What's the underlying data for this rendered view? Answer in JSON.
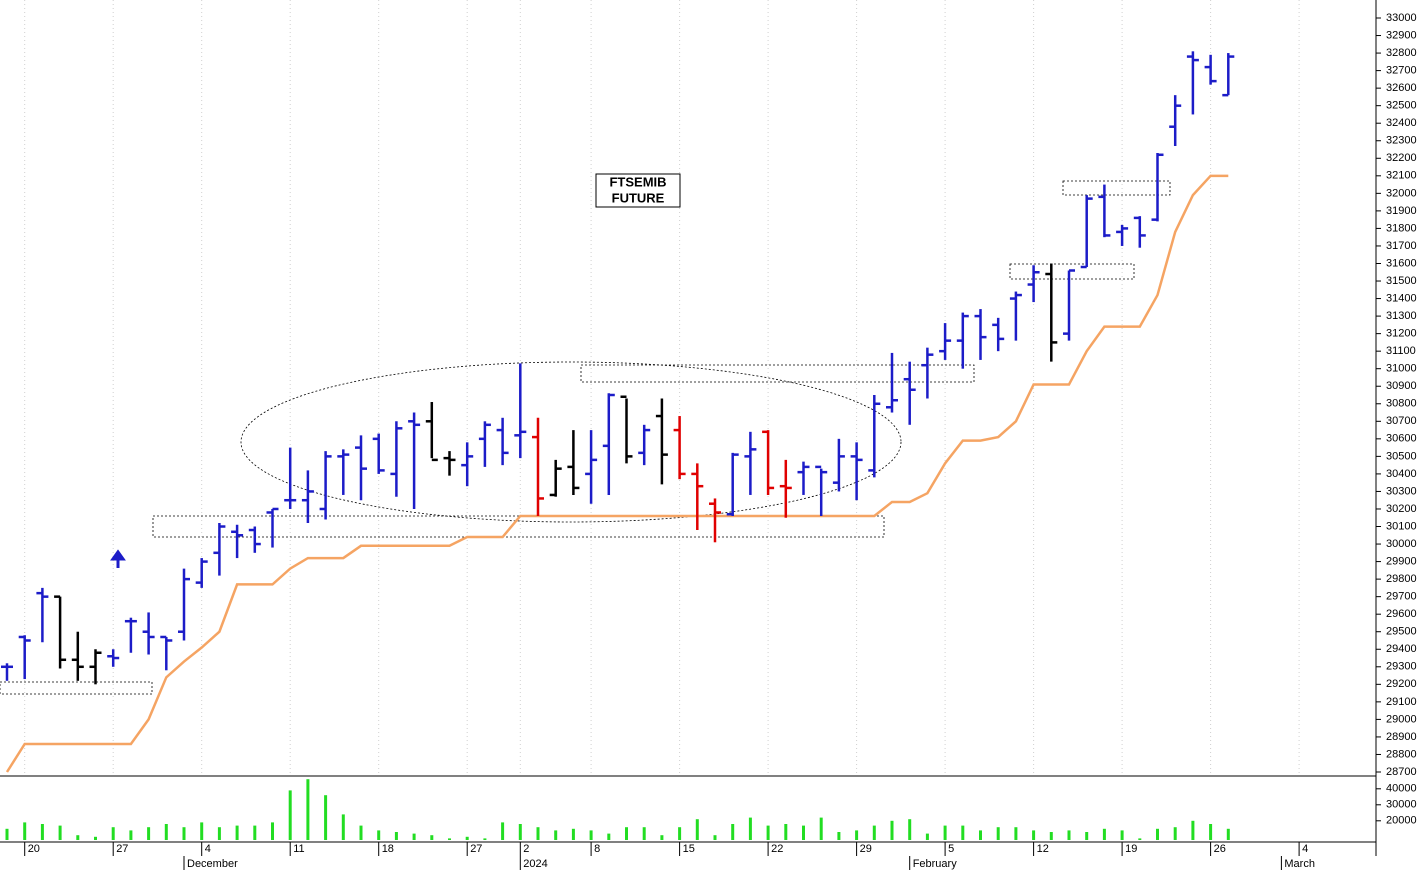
{
  "chart_data": {
    "type": "ohlc",
    "annotation": "FTSEMIB FUTURE",
    "categories": [
      null,
      "20",
      null,
      null,
      null,
      null,
      "27",
      null,
      null,
      null,
      null,
      "4",
      null,
      null,
      null,
      null,
      "11",
      null,
      null,
      null,
      null,
      "18",
      null,
      null,
      null,
      null,
      "27",
      null,
      null,
      "2",
      null,
      null,
      null,
      "8",
      null,
      null,
      null,
      null,
      "15",
      null,
      null,
      null,
      null,
      "22",
      null,
      null,
      null,
      null,
      "29",
      null,
      null,
      null,
      null,
      "5",
      null,
      null,
      null,
      null,
      "12",
      null,
      null,
      null,
      null,
      "19",
      null,
      null,
      null,
      null,
      "26",
      null,
      null,
      null,
      null,
      "4"
    ],
    "months": [
      null,
      null,
      null,
      null,
      null,
      null,
      null,
      null,
      null,
      null,
      "December",
      null,
      null,
      null,
      null,
      null,
      null,
      null,
      null,
      null,
      null,
      null,
      null,
      null,
      null,
      null,
      null,
      null,
      null,
      "2024",
      null,
      null,
      null,
      null,
      null,
      null,
      null,
      null,
      null,
      null,
      null,
      null,
      null,
      null,
      null,
      null,
      null,
      null,
      null,
      null,
      null,
      "February",
      null,
      null,
      null,
      null,
      null,
      null,
      null,
      null,
      null,
      null,
      null,
      null,
      null,
      null,
      null,
      null,
      null,
      null,
      null,
      null,
      "March",
      null
    ],
    "open": [
      29300,
      29470,
      29720,
      29700,
      29340,
      29300,
      29360,
      29560,
      29500,
      29470,
      29500,
      29780,
      29950,
      30070,
      30080,
      30180,
      30250,
      30250,
      30200,
      30500,
      30550,
      30600,
      30400,
      30700,
      30700,
      30490,
      30450,
      30600,
      30650,
      30620,
      30610,
      30280,
      30440,
      30400,
      30560,
      30840,
      30520,
      30730,
      30650,
      30400,
      30230,
      30170,
      30500,
      30640,
      30330,
      30410,
      30440,
      30350,
      30500,
      30420,
      30780,
      30940,
      31020,
      31100,
      31160,
      31300,
      31250,
      31400,
      31480,
      31540,
      31200,
      31580,
      31980,
      31780,
      31860,
      31850,
      32380,
      32780,
      32720,
      32560,
      null,
      null,
      null,
      null
    ],
    "high": [
      29320,
      29480,
      29750,
      29700,
      29500,
      29400,
      29400,
      29580,
      29610,
      29470,
      29860,
      29920,
      30120,
      30110,
      30100,
      30200,
      30550,
      30420,
      30530,
      30540,
      30620,
      30630,
      30700,
      30750,
      30810,
      30530,
      30580,
      30700,
      30720,
      31030,
      30720,
      30480,
      30650,
      30650,
      30860,
      30830,
      30680,
      30830,
      30730,
      30460,
      30260,
      30520,
      30640,
      30650,
      30480,
      30470,
      30430,
      30600,
      30580,
      30850,
      31090,
      31040,
      31120,
      31260,
      31320,
      31340,
      31290,
      31440,
      31590,
      31600,
      31560,
      31990,
      32050,
      31820,
      31870,
      32230,
      32560,
      32810,
      32790,
      32800,
      null,
      null,
      null,
      null
    ],
    "low": [
      29220,
      29230,
      29440,
      29290,
      29220,
      29200,
      29300,
      29380,
      29370,
      29280,
      29450,
      29750,
      29820,
      29920,
      29950,
      29980,
      30200,
      30120,
      30140,
      30280,
      30250,
      30400,
      30270,
      30200,
      30490,
      30390,
      30330,
      30440,
      30450,
      30490,
      30160,
      30270,
      30280,
      30230,
      30280,
      30460,
      30450,
      30340,
      30370,
      30080,
      30010,
      30160,
      30280,
      30280,
      30150,
      30280,
      30160,
      30300,
      30250,
      30380,
      30750,
      30680,
      30830,
      31050,
      31000,
      31050,
      31100,
      31160,
      31380,
      31040,
      31160,
      31580,
      31750,
      31700,
      31690,
      31840,
      32270,
      32450,
      32620,
      32560,
      null,
      null,
      null,
      null
    ],
    "close": [
      29300,
      29450,
      29700,
      29340,
      29300,
      29380,
      29350,
      29560,
      29470,
      29450,
      29800,
      29900,
      30100,
      30050,
      30000,
      30200,
      30250,
      30300,
      30500,
      30510,
      30430,
      30420,
      30660,
      30680,
      30480,
      30480,
      30500,
      30680,
      30520,
      30640,
      30260,
      30430,
      30320,
      30480,
      30850,
      30500,
      30650,
      30510,
      30400,
      30330,
      30180,
      30510,
      30540,
      30320,
      30320,
      30440,
      30410,
      30500,
      30480,
      30800,
      30820,
      30880,
      31080,
      31160,
      31300,
      31180,
      31170,
      31420,
      31550,
      31150,
      31560,
      31970,
      31760,
      31800,
      31760,
      32220,
      32500,
      32760,
      32640,
      32780,
      null,
      null,
      null,
      null
    ],
    "bar_colors": [
      "#1c1cc8",
      "#1c1cc8",
      "#1c1cc8",
      "#000000",
      "#000000",
      "#000000",
      "#1c1cc8",
      "#1c1cc8",
      "#1c1cc8",
      "#1c1cc8",
      "#1c1cc8",
      "#1c1cc8",
      "#1c1cc8",
      "#1c1cc8",
      "#1c1cc8",
      "#1c1cc8",
      "#1c1cc8",
      "#1c1cc8",
      "#1c1cc8",
      "#1c1cc8",
      "#1c1cc8",
      "#1c1cc8",
      "#1c1cc8",
      "#1c1cc8",
      "#000000",
      "#000000",
      "#1c1cc8",
      "#1c1cc8",
      "#1c1cc8",
      "#1c1cc8",
      "#e00000",
      "#000000",
      "#000000",
      "#1c1cc8",
      "#1c1cc8",
      "#000000",
      "#1c1cc8",
      "#000000",
      "#e00000",
      "#e00000",
      "#e00000",
      "#1c1cc8",
      "#1c1cc8",
      "#e00000",
      "#e00000",
      "#1c1cc8",
      "#1c1cc8",
      "#1c1cc8",
      "#1c1cc8",
      "#1c1cc8",
      "#1c1cc8",
      "#1c1cc8",
      "#1c1cc8",
      "#1c1cc8",
      "#1c1cc8",
      "#1c1cc8",
      "#1c1cc8",
      "#1c1cc8",
      "#1c1cc8",
      "#000000",
      "#1c1cc8",
      "#1c1cc8",
      "#1c1cc8",
      "#1c1cc8",
      "#1c1cc8",
      "#1c1cc8",
      "#1c1cc8",
      "#1c1cc8",
      "#1c1cc8",
      "#1c1cc8"
    ],
    "stop_line": {
      "color": "#f5a463",
      "values": [
        28700,
        28860,
        28860,
        28860,
        28860,
        28860,
        28860,
        28860,
        29000,
        29240,
        29330,
        29410,
        29500,
        29770,
        29770,
        29770,
        29860,
        29920,
        29920,
        29920,
        29990,
        29990,
        29990,
        29990,
        29990,
        29990,
        30040,
        30040,
        30040,
        30160,
        30160,
        30160,
        30160,
        30160,
        30160,
        30160,
        30160,
        30160,
        30160,
        30160,
        30160,
        30160,
        30160,
        30160,
        30160,
        30160,
        30160,
        30160,
        30160,
        30160,
        30240,
        30240,
        30290,
        30460,
        30590,
        30590,
        30610,
        30700,
        30910,
        30910,
        30910,
        31100,
        31240,
        31240,
        31240,
        31420,
        31780,
        31990,
        32100,
        32100,
        null,
        null,
        null,
        null
      ]
    },
    "ylim": [
      28700,
      33000
    ],
    "yticks": [
      28700,
      28800,
      28900,
      29000,
      29100,
      29200,
      29300,
      29400,
      29500,
      29600,
      29700,
      29800,
      29900,
      30000,
      30100,
      30200,
      30300,
      30400,
      30500,
      30600,
      30700,
      30800,
      30900,
      31000,
      31100,
      31200,
      31300,
      31400,
      31500,
      31600,
      31700,
      31800,
      31900,
      32000,
      32100,
      32200,
      32300,
      32400,
      32500,
      32600,
      32700,
      32800,
      32900,
      33000
    ],
    "volume": {
      "color": "#22dd22",
      "ylim": [
        8000,
        48000
      ],
      "yticks": [
        20000,
        30000,
        40000
      ],
      "values": [
        15000,
        19000,
        18000,
        17000,
        11000,
        10000,
        16000,
        14000,
        16000,
        18000,
        16000,
        19000,
        16000,
        17000,
        17000,
        19000,
        39000,
        46000,
        36000,
        24000,
        17000,
        14000,
        13000,
        12000,
        11000,
        9000,
        10000,
        9000,
        19000,
        18000,
        16000,
        14000,
        15000,
        14000,
        12000,
        16000,
        16000,
        11000,
        16000,
        21000,
        11000,
        18000,
        22000,
        17000,
        18000,
        17000,
        22000,
        13000,
        14000,
        17000,
        20000,
        21000,
        12000,
        17000,
        17000,
        14000,
        16000,
        16000,
        14000,
        13000,
        14000,
        13000,
        15000,
        14000,
        9000,
        15000,
        16000,
        20000,
        18000,
        15000,
        null,
        null,
        null,
        null
      ]
    }
  }
}
